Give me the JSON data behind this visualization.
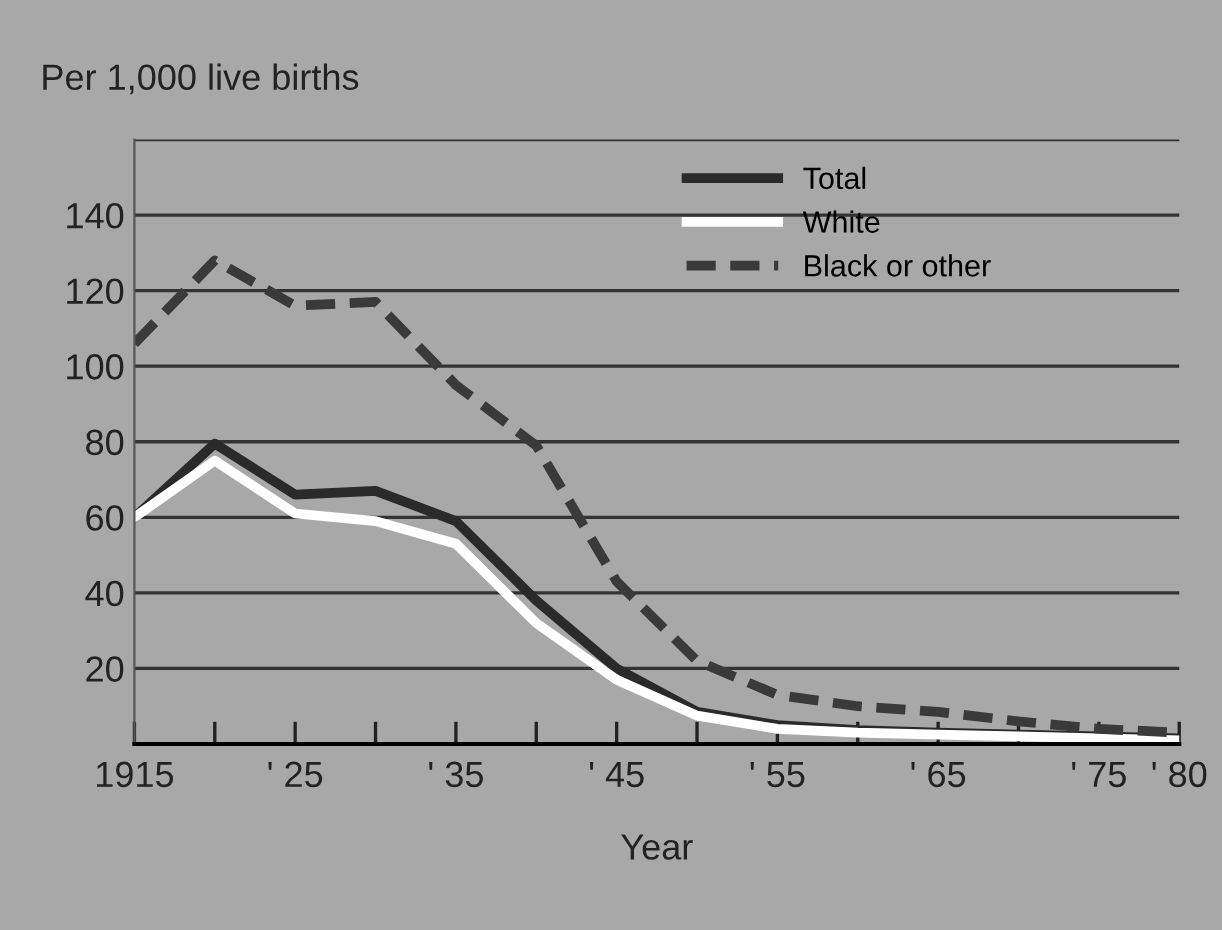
{
  "chart_data": {
    "type": "line",
    "ylabel": "Per 1,000 live births",
    "xlabel": "Year",
    "categories": [
      "1915",
      null,
      "' 25",
      null,
      "' 35",
      null,
      "' 45",
      null,
      "' 55",
      null,
      "' 65",
      null,
      "' 75",
      "' 80"
    ],
    "series": [
      {
        "name": "Total",
        "color": "#2a2a2a",
        "line_style": "solid",
        "values": [
          60,
          79.5,
          66,
          67,
          59,
          38,
          20,
          8.5,
          5,
          3.7,
          3,
          2.5,
          2,
          1.5
        ]
      },
      {
        "name": "White",
        "color": "#ffffff",
        "line_style": "solid",
        "values": [
          60,
          75,
          61,
          59,
          53,
          32,
          17,
          7.5,
          4,
          3,
          2.5,
          2,
          1.5,
          1
        ]
      },
      {
        "name": "Black or other",
        "color": "#3a3a3a",
        "line_style": "dashed",
        "values": [
          106,
          128,
          116,
          117,
          95,
          79,
          43,
          22,
          13,
          10,
          8.5,
          6,
          4,
          3
        ]
      }
    ],
    "ylim": [
      0,
      160
    ],
    "yticks": [
      20,
      40,
      60,
      80,
      100,
      120,
      140,
      {
        "value": 160,
        "label": null
      }
    ],
    "grid": "y",
    "legend": "top right",
    "marker": "none"
  }
}
